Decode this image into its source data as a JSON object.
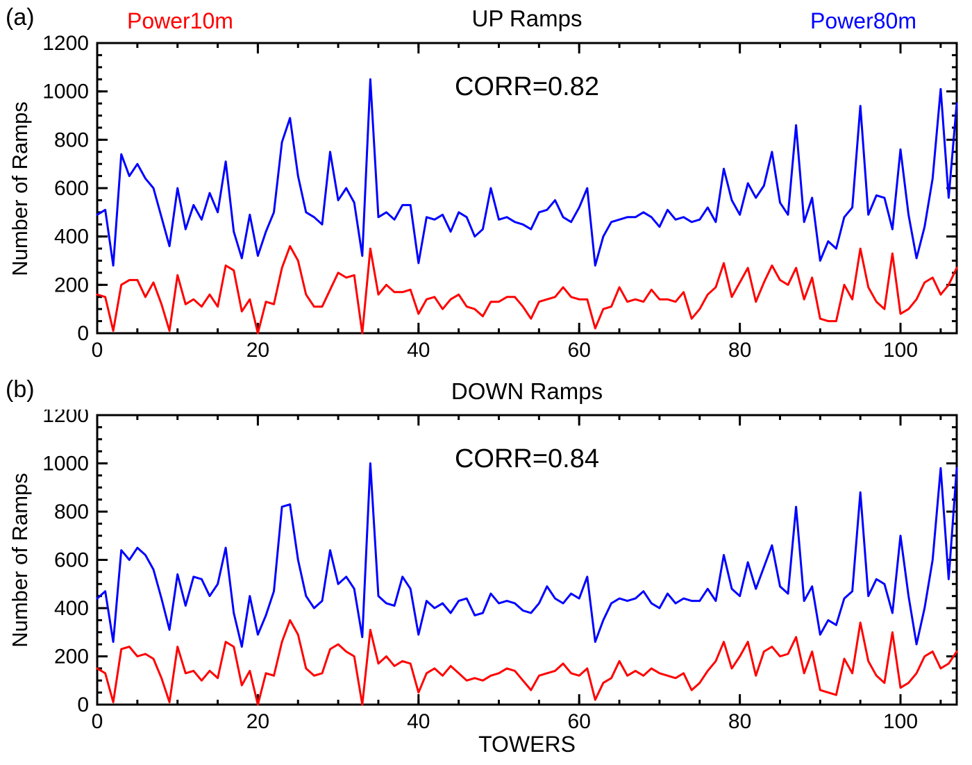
{
  "figure": {
    "background": "#ffffff",
    "axis_color": "#000000",
    "panel_labels": [
      "(a)",
      "(b)"
    ]
  },
  "chart_data": [
    {
      "type": "line",
      "title": "UP Ramps",
      "annotation": "CORR=0.82",
      "xlabel": "",
      "ylabel": "Number of Ramps",
      "xlim": [
        0,
        107
      ],
      "ylim": [
        0,
        1200
      ],
      "x_ticks": [
        0,
        20,
        40,
        60,
        80,
        100
      ],
      "y_ticks": [
        0,
        200,
        400,
        600,
        800,
        1000,
        1200
      ],
      "x_minor": 5,
      "y_minor": 50,
      "grid": false,
      "legend_position": "top",
      "series": [
        {
          "name": "Power10m",
          "color": "#ff0000",
          "values": [
            160,
            150,
            10,
            200,
            220,
            220,
            150,
            210,
            120,
            10,
            240,
            120,
            140,
            110,
            160,
            110,
            280,
            260,
            90,
            140,
            0,
            130,
            120,
            270,
            360,
            300,
            160,
            110,
            110,
            180,
            250,
            230,
            240,
            0,
            350,
            160,
            200,
            170,
            170,
            180,
            80,
            140,
            150,
            100,
            140,
            160,
            110,
            100,
            70,
            130,
            130,
            150,
            150,
            110,
            60,
            130,
            140,
            150,
            190,
            150,
            140,
            140,
            20,
            100,
            110,
            190,
            130,
            140,
            130,
            180,
            140,
            140,
            130,
            170,
            60,
            100,
            160,
            190,
            290,
            150,
            210,
            270,
            130,
            210,
            280,
            220,
            200,
            270,
            140,
            230,
            60,
            50,
            50,
            200,
            140,
            350,
            190,
            130,
            100,
            330,
            80,
            100,
            140,
            210,
            230,
            160,
            200,
            270
          ]
        },
        {
          "name": "Power80m",
          "color": "#0000ff",
          "values": [
            490,
            510,
            280,
            740,
            650,
            700,
            640,
            600,
            480,
            360,
            600,
            430,
            530,
            470,
            580,
            500,
            710,
            420,
            310,
            490,
            320,
            420,
            500,
            790,
            890,
            650,
            500,
            480,
            450,
            750,
            550,
            600,
            540,
            320,
            1050,
            480,
            500,
            470,
            530,
            530,
            290,
            480,
            470,
            490,
            420,
            500,
            480,
            400,
            430,
            600,
            470,
            480,
            460,
            450,
            430,
            500,
            510,
            550,
            480,
            460,
            520,
            600,
            280,
            400,
            460,
            470,
            480,
            480,
            500,
            480,
            440,
            510,
            470,
            480,
            460,
            470,
            520,
            460,
            680,
            550,
            490,
            620,
            560,
            610,
            750,
            540,
            490,
            860,
            460,
            560,
            300,
            380,
            350,
            480,
            520,
            940,
            490,
            570,
            560,
            430,
            760,
            490,
            310,
            440,
            640,
            1010,
            560,
            950
          ]
        }
      ]
    },
    {
      "type": "line",
      "title": "DOWN Ramps",
      "annotation": "CORR=0.84",
      "xlabel": "TOWERS",
      "ylabel": "Number of Ramps",
      "xlim": [
        0,
        107
      ],
      "ylim": [
        0,
        1200
      ],
      "x_ticks": [
        0,
        20,
        40,
        60,
        80,
        100
      ],
      "y_ticks": [
        0,
        200,
        400,
        600,
        800,
        1000,
        1200
      ],
      "x_minor": 5,
      "y_minor": 50,
      "grid": false,
      "legend_position": "none",
      "series": [
        {
          "name": "Power10m",
          "color": "#ff0000",
          "values": [
            150,
            130,
            10,
            230,
            240,
            200,
            210,
            190,
            110,
            10,
            240,
            130,
            140,
            100,
            140,
            110,
            260,
            240,
            80,
            140,
            0,
            130,
            120,
            260,
            350,
            290,
            150,
            120,
            130,
            230,
            250,
            220,
            200,
            0,
            310,
            170,
            200,
            160,
            180,
            170,
            50,
            130,
            150,
            120,
            160,
            130,
            100,
            110,
            100,
            120,
            130,
            150,
            140,
            100,
            60,
            120,
            130,
            140,
            170,
            130,
            120,
            150,
            20,
            90,
            110,
            180,
            120,
            140,
            120,
            150,
            130,
            120,
            110,
            130,
            60,
            90,
            140,
            180,
            260,
            150,
            200,
            260,
            120,
            220,
            240,
            200,
            210,
            280,
            130,
            220,
            60,
            50,
            40,
            190,
            130,
            340,
            180,
            120,
            90,
            300,
            70,
            90,
            130,
            200,
            220,
            150,
            170,
            220
          ]
        },
        {
          "name": "Power80m",
          "color": "#0000ff",
          "values": [
            440,
            470,
            260,
            640,
            600,
            650,
            620,
            560,
            440,
            310,
            540,
            410,
            530,
            520,
            450,
            500,
            650,
            380,
            240,
            450,
            290,
            370,
            470,
            820,
            830,
            600,
            450,
            400,
            430,
            640,
            500,
            530,
            480,
            280,
            1000,
            450,
            420,
            410,
            530,
            480,
            290,
            430,
            400,
            420,
            380,
            430,
            440,
            370,
            380,
            460,
            420,
            430,
            420,
            390,
            380,
            420,
            490,
            440,
            420,
            460,
            440,
            530,
            260,
            350,
            420,
            440,
            430,
            440,
            470,
            420,
            400,
            460,
            420,
            440,
            430,
            430,
            480,
            430,
            620,
            480,
            450,
            590,
            480,
            570,
            660,
            490,
            460,
            820,
            430,
            490,
            290,
            350,
            330,
            440,
            470,
            880,
            450,
            520,
            500,
            380,
            700,
            450,
            250,
            400,
            600,
            980,
            520,
            980
          ]
        }
      ]
    }
  ]
}
